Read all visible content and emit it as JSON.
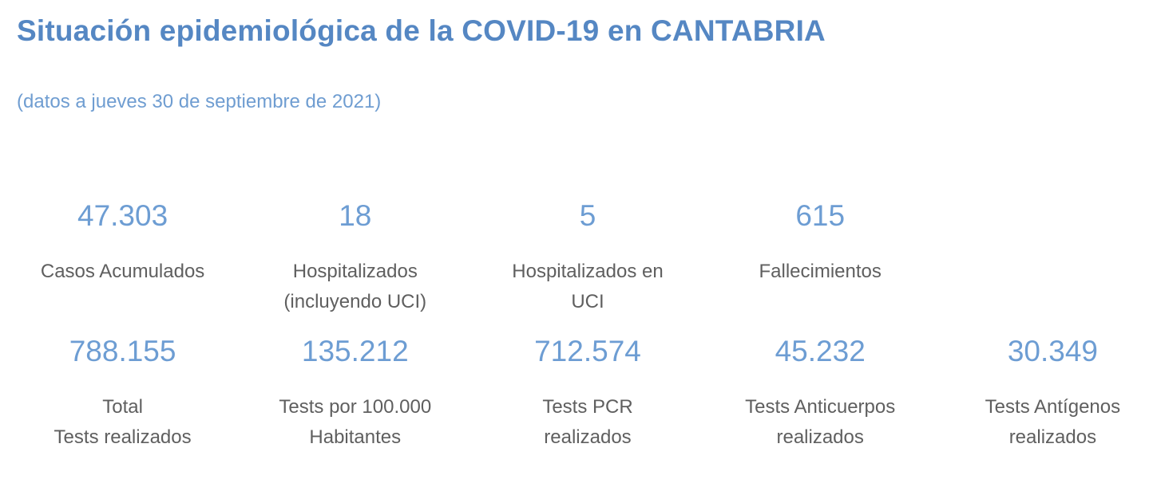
{
  "page": {
    "title": "Situación epidemiológica de la COVID-19 en CANTABRIA",
    "subtitle": "(datos a jueves 30 de septiembre de 2021)"
  },
  "colors": {
    "background": "#ffffff",
    "title_text": "#5587c3",
    "subtitle_text": "#6f9dd1",
    "value_text": "#6d9dd3",
    "label_text": "#5f5f5f"
  },
  "stats_rows": [
    [
      {
        "value": "47.303",
        "label_lines": [
          "Casos Acumulados"
        ]
      },
      {
        "value": "18",
        "label_lines": [
          "Hospitalizados",
          "(incluyendo UCI)"
        ]
      },
      {
        "value": "5",
        "label_lines": [
          "Hospitalizados en",
          "UCI"
        ]
      },
      {
        "value": "615",
        "label_lines": [
          "Fallecimientos"
        ]
      }
    ],
    [
      {
        "value": "788.155",
        "label_lines": [
          "Total",
          "Tests realizados"
        ]
      },
      {
        "value": "135.212",
        "label_lines": [
          "Tests por 100.000",
          "Habitantes"
        ]
      },
      {
        "value": "712.574",
        "label_lines": [
          "Tests PCR",
          "realizados"
        ]
      },
      {
        "value": "45.232",
        "label_lines": [
          "Tests Anticuerpos",
          "realizados"
        ]
      },
      {
        "value": "30.349",
        "label_lines": [
          "Tests Antígenos",
          "realizados"
        ]
      }
    ]
  ],
  "chart_data": {
    "type": "table",
    "title": "Situación epidemiológica de la COVID-19 en CANTABRIA",
    "subtitle": "(datos a jueves 30 de septiembre de 2021)",
    "kpis": [
      {
        "label": "Casos Acumulados",
        "value": 47303,
        "display": "47.303"
      },
      {
        "label": "Hospitalizados (incluyendo UCI)",
        "value": 18,
        "display": "18"
      },
      {
        "label": "Hospitalizados en UCI",
        "value": 5,
        "display": "5"
      },
      {
        "label": "Fallecimientos",
        "value": 615,
        "display": "615"
      },
      {
        "label": "Total Tests realizados",
        "value": 788155,
        "display": "788.155"
      },
      {
        "label": "Tests por 100.000 Habitantes",
        "value": 135212,
        "display": "135.212"
      },
      {
        "label": "Tests PCR realizados",
        "value": 712574,
        "display": "712.574"
      },
      {
        "label": "Tests Anticuerpos realizados",
        "value": 45232,
        "display": "45.232"
      },
      {
        "label": "Tests Antígenos realizados",
        "value": 30349,
        "display": "30.349"
      }
    ],
    "layout": {
      "rows": [
        4,
        5
      ],
      "columns": 5,
      "grid": false,
      "legend": "none"
    }
  }
}
